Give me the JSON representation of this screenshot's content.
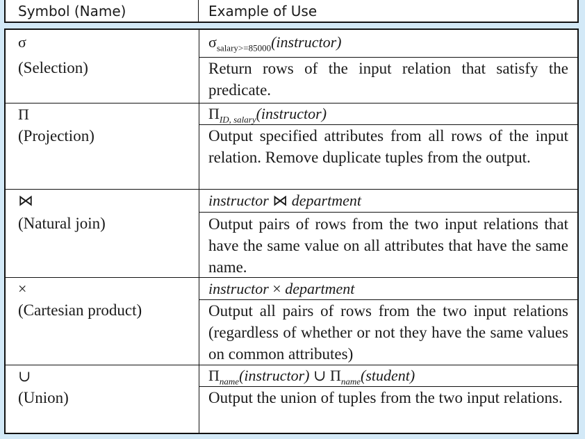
{
  "header": {
    "col1": "Symbol (Name)",
    "col2": "Example of Use"
  },
  "rows": [
    {
      "symbol": "σ",
      "name": "(Selection)",
      "example": {
        "op": "σ",
        "sub": "salary>=85000",
        "arg": "(instructor)"
      },
      "description": "Return rows of the input relation that satisfy the predicate."
    },
    {
      "symbol": "Π",
      "name": "(Projection)",
      "example": {
        "op": "Π",
        "sub": "ID, salary",
        "arg": "(instructor)"
      },
      "description": "Output specified attributes from all rows of the input relation. Remove duplicate tuples from the output."
    },
    {
      "symbol": "⋈",
      "name": "(Natural join)",
      "example": {
        "left": "instructor",
        "op": "⋈",
        "right": "department"
      },
      "description": "Output pairs of rows from the two input relations that have the same value on all attributes that have the same name."
    },
    {
      "symbol": "×",
      "name": "(Cartesian product)",
      "example": {
        "left": "instructor",
        "op": "×",
        "right": "department"
      },
      "description": "Output all pairs of rows from the two input relations (regardless of whether or not they have the same values on common attributes)"
    },
    {
      "symbol": "∪",
      "name": "(Union)",
      "example": {
        "op1": "Π",
        "sub1": "name",
        "arg1": "(instructor)",
        "union": "∪",
        "op2": "Π",
        "sub2": "name",
        "arg2": "(student)"
      },
      "description": "Output the union of tuples from the two input relations."
    }
  ]
}
